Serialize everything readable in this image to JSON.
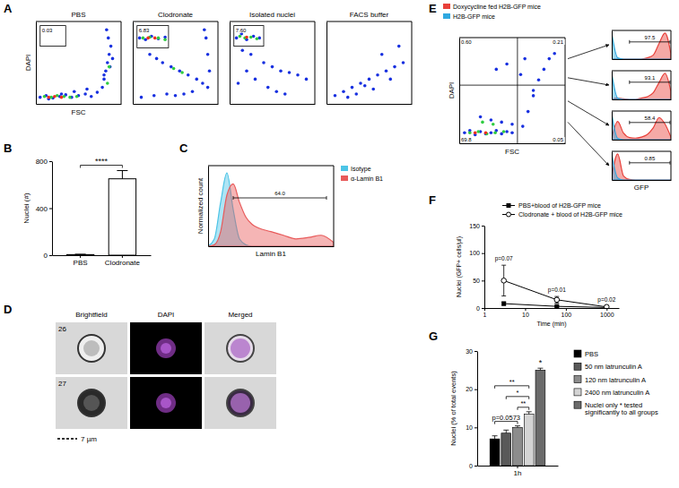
{
  "chart_data": [
    {
      "type": "scatter",
      "panel": "A",
      "title": "PBS",
      "xlabel": "FSC",
      "ylabel": "DAPI",
      "xlim": [
        0,
        100
      ],
      "ylim": [
        0,
        100
      ],
      "tick_labels": false,
      "series": [
        {
          "color": "#1830e0",
          "x": [
            5,
            12,
            20,
            28,
            35,
            42,
            50,
            58,
            65,
            72,
            78,
            80,
            82,
            84,
            86,
            88,
            85,
            83,
            80,
            87,
            90,
            60,
            45,
            30,
            15
          ],
          "values": [
            8,
            10,
            7,
            9,
            11,
            8,
            10,
            12,
            9,
            14,
            20,
            30,
            40,
            50,
            60,
            70,
            80,
            90,
            35,
            45,
            55,
            18,
            15,
            12,
            6
          ]
        },
        {
          "color": "#2ecc40",
          "x": [
            10,
            18,
            25,
            33,
            40,
            48,
            84,
            86
          ],
          "values": [
            9,
            8,
            10,
            9,
            8,
            9,
            25,
            45
          ]
        },
        {
          "color": "#f0301c",
          "x": [
            15,
            22,
            30
          ],
          "values": [
            8,
            9,
            8
          ]
        }
      ],
      "gate": [
        5,
        35,
        70,
        95
      ],
      "gate_label": "0.03"
    },
    {
      "type": "scatter",
      "title": "Clodronate",
      "xlim": [
        0,
        100
      ],
      "ylim": [
        0,
        100
      ],
      "tick_labels": false,
      "series": [
        {
          "color": "#1830e0",
          "x": [
            8,
            15,
            22,
            30,
            38,
            20,
            28,
            35,
            45,
            55,
            65,
            75,
            82,
            88,
            90,
            88,
            86,
            84,
            40,
            50,
            60,
            70,
            10,
            25
          ],
          "values": [
            80,
            78,
            82,
            79,
            81,
            60,
            55,
            50,
            45,
            40,
            35,
            30,
            25,
            20,
            40,
            60,
            80,
            90,
            12,
            10,
            12,
            15,
            8,
            10
          ]
        },
        {
          "color": "#2ecc40",
          "x": [
            12,
            20,
            30,
            38,
            48,
            58
          ],
          "values": [
            80,
            81,
            80,
            78,
            43,
            38
          ]
        },
        {
          "color": "#f0301c",
          "x": [
            18,
            26
          ],
          "values": [
            80,
            80
          ]
        }
      ],
      "gate": [
        5,
        42,
        68,
        95
      ],
      "gate_label": "6.83"
    },
    {
      "type": "scatter",
      "title": "Isolated nuclei",
      "xlim": [
        0,
        100
      ],
      "ylim": [
        0,
        100
      ],
      "tick_labels": false,
      "series": [
        {
          "color": "#1830e0",
          "x": [
            8,
            14,
            20,
            28,
            35,
            15,
            25,
            40,
            50,
            60,
            70,
            80,
            90,
            45,
            55,
            65,
            30,
            20,
            10
          ],
          "values": [
            80,
            85,
            78,
            82,
            80,
            65,
            60,
            50,
            45,
            40,
            38,
            35,
            30,
            20,
            15,
            12,
            30,
            40,
            25
          ]
        },
        {
          "color": "#2ecc40",
          "x": [
            12,
            18,
            25,
            32
          ],
          "values": [
            82,
            80,
            81,
            79
          ]
        },
        {
          "color": "#f0301c",
          "x": [
            20
          ],
          "values": [
            81
          ]
        }
      ],
      "gate": [
        5,
        40,
        70,
        95
      ],
      "gate_label": "7.60"
    },
    {
      "type": "scatter",
      "title": "FACS buffer",
      "xlim": [
        0,
        100
      ],
      "ylim": [
        0,
        100
      ],
      "tick_labels": false,
      "series": [
        {
          "color": "#1830e0",
          "x": [
            10,
            20,
            30,
            40,
            50,
            60,
            70,
            80,
            90,
            35,
            55,
            75,
            65,
            85,
            45,
            25
          ],
          "values": [
            10,
            15,
            20,
            25,
            30,
            35,
            40,
            45,
            50,
            12,
            18,
            30,
            60,
            70,
            22,
            8
          ]
        }
      ]
    },
    {
      "type": "bar",
      "panel": "B",
      "ylabel": "Nuclei (#)",
      "categories": [
        "PBS",
        "Clodronate"
      ],
      "values": [
        5,
        650
      ],
      "errors": [
        3,
        70
      ],
      "colors": [
        "#000000",
        "#ffffff"
      ],
      "ylim": [
        0,
        800
      ],
      "yticks": [
        0,
        400,
        800
      ],
      "significance": [
        {
          "from": 0,
          "to": 1,
          "text": "****"
        }
      ]
    },
    {
      "type": "area",
      "panel": "C",
      "xlabel": "Lamin B1",
      "ylabel": "Normalized count",
      "xlim": [
        0,
        100
      ],
      "ylim": [
        0,
        110
      ],
      "tick_labels": false,
      "legend": "right",
      "x": [
        0,
        5,
        10,
        15,
        20,
        25,
        30,
        35,
        40,
        50,
        60,
        70,
        80,
        90,
        100
      ],
      "series": [
        {
          "name": "Isotype",
          "color": "#4cc4e6",
          "values": [
            0,
            10,
            60,
            100,
            50,
            10,
            2,
            0,
            0,
            0,
            0,
            0,
            0,
            0,
            0
          ]
        },
        {
          "name": "α-Lamin B1",
          "color": "#e85a5a",
          "values": [
            0,
            2,
            20,
            70,
            85,
            60,
            40,
            30,
            25,
            20,
            15,
            10,
            12,
            15,
            5
          ]
        }
      ],
      "gate": [
        20,
        95
      ],
      "gate_label": "64.0"
    },
    {
      "type": "scatter",
      "panel": "E",
      "xlabel": "FSC",
      "ylabel": "DAPI",
      "xlim": [
        0,
        100
      ],
      "ylim": [
        0,
        100
      ],
      "tick_labels": false,
      "series": [
        {
          "color": "#1830e0",
          "x": [
            5,
            10,
            15,
            20,
            25,
            30,
            35,
            40,
            45,
            50,
            20,
            30,
            40,
            50,
            60,
            65,
            70,
            75,
            80,
            85,
            90,
            35,
            45,
            58,
            62,
            70
          ],
          "values": [
            10,
            12,
            8,
            11,
            9,
            10,
            12,
            9,
            11,
            10,
            25,
            22,
            20,
            18,
            16,
            30,
            45,
            60,
            70,
            80,
            85,
            70,
            75,
            65,
            80,
            50
          ]
        },
        {
          "color": "#2ecc40",
          "x": [
            10,
            18,
            26,
            34,
            42,
            22,
            32
          ],
          "values": [
            10,
            11,
            9,
            10,
            11,
            20,
            18
          ]
        },
        {
          "color": "#f0301c",
          "x": [
            15,
            25
          ],
          "values": [
            10,
            10
          ]
        }
      ],
      "quadrant": [
        55,
        55
      ],
      "quadrant_labels": [
        "0.60",
        "0.21",
        "69.8",
        "0.05"
      ]
    },
    {
      "type": "area",
      "xlim": [
        0,
        100
      ],
      "ylim": [
        0,
        110
      ],
      "tick_labels": false,
      "legend": "top",
      "x": [
        0,
        10,
        20,
        30,
        40,
        50,
        60,
        70,
        80,
        90,
        100
      ],
      "series": [
        {
          "name": "Doxycycline fed H2B-GFP mice",
          "color": "#e8403a",
          "values": [
            0,
            0,
            0,
            0,
            0,
            0,
            5,
            15,
            60,
            100,
            20
          ]
        },
        {
          "name": "H2B-GFP mice",
          "color": "#2fa8e0",
          "values": [
            100,
            5,
            0,
            0,
            0,
            0,
            0,
            0,
            0,
            0,
            0
          ]
        }
      ],
      "gate": [
        30,
        100
      ],
      "gate_label": "97.5"
    },
    {
      "type": "area",
      "xlim": [
        0,
        100
      ],
      "ylim": [
        0,
        110
      ],
      "tick_labels": false,
      "x": [
        0,
        10,
        20,
        30,
        40,
        50,
        60,
        70,
        80,
        90,
        100
      ],
      "series": [
        {
          "color": "#e8403a",
          "values": [
            0,
            5,
            2,
            0,
            0,
            5,
            10,
            25,
            65,
            100,
            30
          ]
        },
        {
          "color": "#2fa8e0",
          "values": [
            100,
            5,
            0,
            0,
            0,
            0,
            0,
            0,
            0,
            0,
            0
          ]
        }
      ],
      "gate": [
        30,
        100
      ],
      "gate_label": "93.1"
    },
    {
      "type": "area",
      "xlim": [
        0,
        100
      ],
      "ylim": [
        0,
        110
      ],
      "tick_labels": false,
      "x": [
        0,
        10,
        20,
        30,
        40,
        50,
        60,
        70,
        80,
        90,
        100
      ],
      "series": [
        {
          "color": "#e8403a",
          "values": [
            5,
            70,
            25,
            8,
            6,
            10,
            20,
            45,
            85,
            60,
            10
          ]
        },
        {
          "color": "#2fa8e0",
          "values": [
            100,
            5,
            0,
            0,
            0,
            0,
            0,
            0,
            0,
            0,
            0
          ]
        }
      ],
      "gate": [
        30,
        100
      ],
      "gate_label": "58.4"
    },
    {
      "type": "area",
      "xlabel": "GFP",
      "xlim": [
        0,
        100
      ],
      "ylim": [
        0,
        110
      ],
      "tick_labels": false,
      "x": [
        0,
        10,
        20,
        30,
        40,
        50,
        60,
        70,
        80,
        90,
        100
      ],
      "series": [
        {
          "color": "#e8403a",
          "values": [
            10,
            100,
            15,
            2,
            0,
            0,
            0,
            0,
            0,
            0,
            0
          ]
        },
        {
          "color": "#2fa8e0",
          "values": [
            100,
            8,
            0,
            0,
            0,
            0,
            0,
            0,
            0,
            0,
            0
          ]
        }
      ],
      "gate": [
        30,
        100
      ],
      "gate_label": "0.85"
    },
    {
      "type": "line",
      "panel": "F",
      "xlabel": "Time (min)",
      "ylabel": "Nuclei (GFP+ cells/µl)",
      "log": "x",
      "xlim": [
        1,
        2000
      ],
      "xticks": [
        1,
        10,
        100,
        1000
      ],
      "ylim": [
        0,
        150
      ],
      "yticks": [
        0,
        50,
        100,
        150
      ],
      "legend": "top",
      "line_style": "solid",
      "x": [
        3,
        60,
        1000
      ],
      "series": [
        {
          "name": "PBS+blood of H2B-GFP mice",
          "color": "#000000",
          "marker": "square",
          "values": [
            8,
            3,
            1
          ],
          "errors": [
            3,
            1,
            0.5
          ]
        },
        {
          "name": "Clodronate + blood of H2B-GFP mice",
          "color": "#000000",
          "marker": "circle-open",
          "values": [
            50,
            15,
            2
          ],
          "errors": [
            28,
            6,
            1
          ]
        }
      ],
      "annotations": [
        {
          "text": "p=0.07",
          "x": 3
        },
        {
          "text": "p=0.01",
          "x": 60
        },
        {
          "text": "p=0.02",
          "x": 1000
        }
      ]
    },
    {
      "type": "bar",
      "panel": "G",
      "ylabel": "Nuclei (% of total events)",
      "categories": [
        "1h"
      ],
      "ylim": [
        0,
        30
      ],
      "yticks": [
        0,
        10,
        20,
        30
      ],
      "legend": "right",
      "series": [
        {
          "name": "PBS",
          "color": "#000000",
          "values": [
            7
          ],
          "errors": [
            0.8
          ]
        },
        {
          "name": "50 nm latrunculin A",
          "color": "#595959",
          "values": [
            8.5
          ],
          "errors": [
            0.8
          ]
        },
        {
          "name": "120 nm latrunculin A",
          "color": "#8c8c8c",
          "values": [
            10
          ],
          "errors": [
            0.4
          ]
        },
        {
          "name": "2400 nm latrunculin A",
          "color": "#d4d4d4",
          "values": [
            13.5
          ],
          "errors": [
            0.6
          ]
        },
        {
          "name": "Nuclei only * tested significantly to all groups",
          "color": "#6b6b6b",
          "values": [
            25
          ],
          "errors": [
            0.5
          ]
        }
      ],
      "significance": [
        {
          "from": 0,
          "to": 2,
          "text": "p=0.0573"
        },
        {
          "from": 2,
          "to": 3,
          "text": "**"
        },
        {
          "from": 1,
          "to": 3,
          "text": "*"
        },
        {
          "from": 0,
          "to": 3,
          "text": "**"
        }
      ],
      "annotations": [
        {
          "series": 4,
          "text": "*"
        }
      ]
    }
  ],
  "panel_d": {
    "panel": "D",
    "columns": [
      "Brightfield",
      "DAPI",
      "Merged"
    ],
    "rows": [
      "26",
      "27"
    ],
    "scale_bar": "7 µm"
  }
}
